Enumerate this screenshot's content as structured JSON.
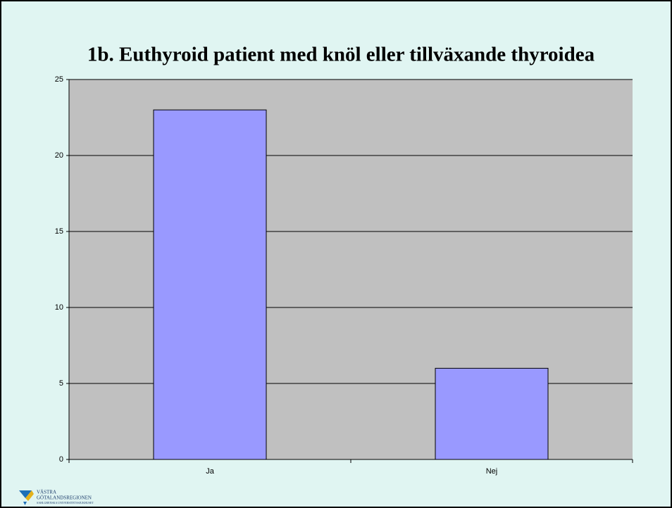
{
  "chart_data": {
    "type": "bar",
    "title": "1b. Euthyroid patient med knöl eller tillväxande thyroidea",
    "categories": [
      "Ja",
      "Nej"
    ],
    "values": [
      23,
      6
    ],
    "color": "#9999ff",
    "ylim": [
      0,
      25
    ],
    "yticks": [
      0,
      5,
      10,
      15,
      20,
      25
    ],
    "grid": true
  },
  "footer": {
    "logo_lines": [
      "VÄSTRA",
      "GÖTALANDSREGIONEN",
      "SAHLGRENSKA UNIVERSITETSSJUKHUSET"
    ]
  }
}
